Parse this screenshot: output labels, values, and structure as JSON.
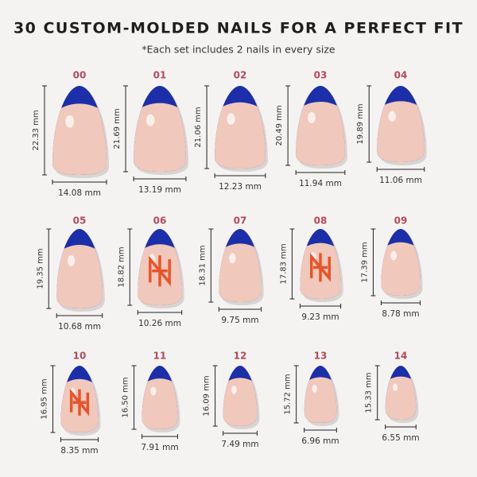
{
  "header": {
    "title": "30 CUSTOM-MOLDED NAILS FOR A PERFECT FIT",
    "subtitle": "*Each set includes 2 nails in every size"
  },
  "nails": [
    {
      "label": "00",
      "height": "22.33 mm",
      "width": "14.08 mm"
    },
    {
      "label": "01",
      "height": "21.69 mm",
      "width": "13.19 mm"
    },
    {
      "label": "02",
      "height": "21.06 mm",
      "width": "12.23 mm"
    },
    {
      "label": "03",
      "height": "20.49 mm",
      "width": "11.94 mm"
    },
    {
      "label": "04",
      "height": "19.89 mm",
      "width": "11.06 mm"
    },
    {
      "label": "05",
      "height": "19.35 mm",
      "width": "10.68 mm"
    },
    {
      "label": "06",
      "height": "18.82 mm",
      "width": "10.26 mm"
    },
    {
      "label": "07",
      "height": "18.31 mm",
      "width": "9.75 mm"
    },
    {
      "label": "08",
      "height": "17.83 mm",
      "width": "9.23 mm"
    },
    {
      "label": "09",
      "height": "17.39 mm",
      "width": "8.78 mm"
    },
    {
      "label": "10",
      "height": "16.95 mm",
      "width": "8.35 mm"
    },
    {
      "label": "11",
      "height": "16.50 mm",
      "width": "7.91 mm"
    },
    {
      "label": "12",
      "height": "16.09 mm",
      "width": "7.49 mm"
    },
    {
      "label": "13",
      "height": "15.72 mm",
      "width": "6.96 mm"
    },
    {
      "label": "14",
      "height": "15.33 mm",
      "width": "6.55 mm"
    }
  ]
}
